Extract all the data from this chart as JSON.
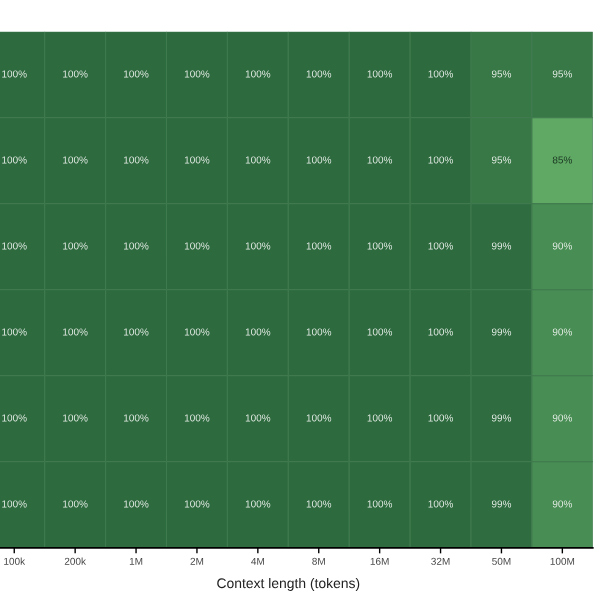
{
  "chart_data": {
    "type": "heatmap",
    "xlabel": "Context length (tokens)",
    "categories": [
      "100k",
      "200k",
      "1M",
      "2M",
      "4M",
      "8M",
      "16M",
      "32M",
      "50M",
      "100M"
    ],
    "y_categories": [
      null,
      null,
      null,
      null,
      null,
      null
    ],
    "cells": [
      [
        100,
        100,
        100,
        100,
        100,
        100,
        100,
        100,
        95,
        95
      ],
      [
        100,
        100,
        100,
        100,
        100,
        100,
        100,
        100,
        95,
        85
      ],
      [
        100,
        100,
        100,
        100,
        100,
        100,
        100,
        100,
        99,
        90
      ],
      [
        100,
        100,
        100,
        100,
        100,
        100,
        100,
        100,
        99,
        90
      ],
      [
        100,
        100,
        100,
        100,
        100,
        100,
        100,
        100,
        99,
        90
      ],
      [
        100,
        100,
        100,
        100,
        100,
        100,
        100,
        100,
        99,
        90
      ]
    ],
    "cell_labels": [
      [
        "100%",
        "100%",
        "100%",
        "100%",
        "100%",
        "100%",
        "100%",
        "100%",
        "95%",
        "95%"
      ],
      [
        "100%",
        "100%",
        "100%",
        "100%",
        "100%",
        "100%",
        "100%",
        "100%",
        "95%",
        "85%"
      ],
      [
        "100%",
        "100%",
        "100%",
        "100%",
        "100%",
        "100%",
        "100%",
        "100%",
        "99%",
        "90%"
      ],
      [
        "100%",
        "100%",
        "100%",
        "100%",
        "100%",
        "100%",
        "100%",
        "100%",
        "99%",
        "90%"
      ],
      [
        "100%",
        "100%",
        "100%",
        "100%",
        "100%",
        "100%",
        "100%",
        "100%",
        "99%",
        "90%"
      ],
      [
        "100%",
        "100%",
        "100%",
        "100%",
        "100%",
        "100%",
        "100%",
        "100%",
        "99%",
        "90%"
      ]
    ]
  }
}
